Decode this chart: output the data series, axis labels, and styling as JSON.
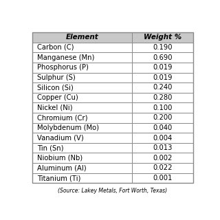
{
  "headers": [
    "Element",
    "Weight %"
  ],
  "rows": [
    [
      "Carbon (C)",
      "0.190"
    ],
    [
      "Manganese (Mn)",
      "0.690"
    ],
    [
      "Phosphorus (P)",
      "0.019"
    ],
    [
      "Sulphur (S)",
      "0.019"
    ],
    [
      "Silicon (Si)",
      "0.240"
    ],
    [
      "Copper (Cu)",
      "0.280"
    ],
    [
      "Nickel (Ni)",
      "0.100"
    ],
    [
      "Chromium (Cr)",
      "0.200"
    ],
    [
      "Molybdenum (Mo)",
      "0.040"
    ],
    [
      "Vanadium (V)",
      "0.004"
    ],
    [
      "Tin (Sn)",
      "0.013"
    ],
    [
      "Niobium (Nb)",
      "0.002"
    ],
    [
      "Aluminum (Al)",
      "0.022"
    ],
    [
      "Titanium (Ti)",
      "0.001"
    ]
  ],
  "footer": "(Source: Lakey Metals, Fort Worth, Texas)",
  "background_color": "#ffffff",
  "header_bg_color": "#c8c8c8",
  "line_color": "#888888",
  "text_color": "#000000",
  "font_size": 7.2,
  "header_font_size": 7.5,
  "footer_font_size": 5.5,
  "col_split": 0.62
}
